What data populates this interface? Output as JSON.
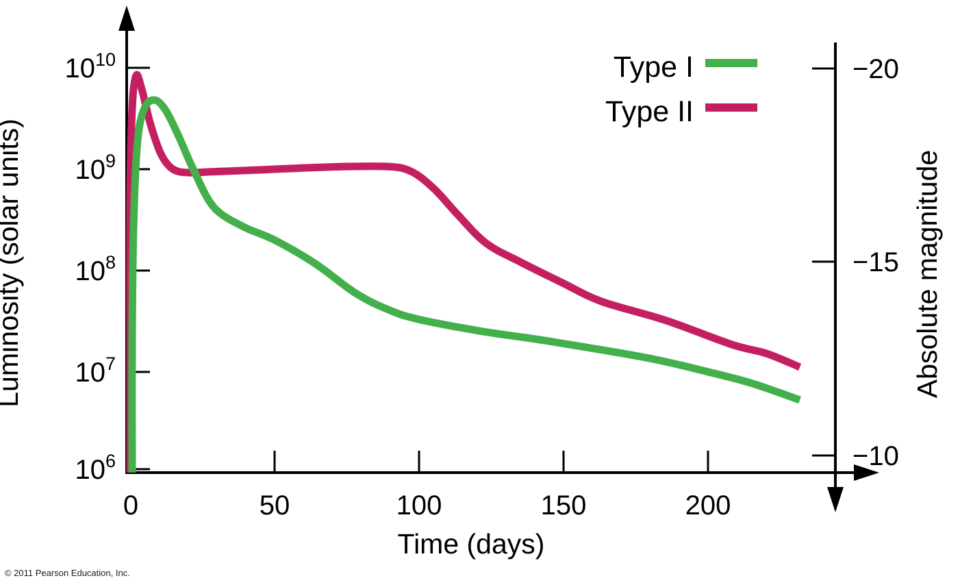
{
  "figure": {
    "copyright": "© 2011 Pearson Education, Inc."
  },
  "chart_data": {
    "type": "line",
    "title": "",
    "xlabel": "Time (days)",
    "ylabel_left": "Luminosity (solar units)",
    "ylabel_right": "Absolute magnitude",
    "x_ticks": [
      0,
      50,
      100,
      150,
      200
    ],
    "x_tick_labels": [
      "0",
      "50",
      "100",
      "150",
      "200"
    ],
    "x_range_days": [
      0,
      232
    ],
    "y_left_scale": "log",
    "y_left_range": [
      1000000.0,
      10000000000.0
    ],
    "y_left_ticks": [
      10000000000.0,
      1000000000.0,
      100000000.0,
      10000000.0,
      1000000.0
    ],
    "y_left_tick_labels": [
      {
        "base": "10",
        "exp": "10"
      },
      {
        "base": "10",
        "exp": "9"
      },
      {
        "base": "10",
        "exp": "8"
      },
      {
        "base": "10",
        "exp": "7"
      },
      {
        "base": "10",
        "exp": "6"
      }
    ],
    "y_right_ticks": [
      -20,
      -15,
      -10
    ],
    "y_right_tick_labels": [
      "−20",
      "−15",
      "−10"
    ],
    "grid": false,
    "legend_position": "top-right",
    "series": [
      {
        "name": "Type I",
        "color": "#43b04c",
        "points_day_luminosity": [
          [
            0.7,
            1000000.0
          ],
          [
            0.7,
            19000000.0
          ],
          [
            1.2,
            270000000.0
          ],
          [
            2.6,
            1900000000.0
          ],
          [
            5,
            4000000000.0
          ],
          [
            8.5,
            4800000000.0
          ],
          [
            12.3,
            3800000000.0
          ],
          [
            16.8,
            2100000000.0
          ],
          [
            21.8,
            1000000000.0
          ],
          [
            28.9,
            420000000.0
          ],
          [
            39,
            270000000.0
          ],
          [
            49.7,
            200000000.0
          ],
          [
            64,
            116000000.0
          ],
          [
            78,
            59000000.0
          ],
          [
            89,
            41000000.0
          ],
          [
            99,
            33000000.0
          ],
          [
            121,
            25000000.0
          ],
          [
            144,
            20000000.0
          ],
          [
            178,
            13700000.0
          ],
          [
            199,
            10000000.0
          ],
          [
            215,
            7600000.0
          ],
          [
            231.5,
            5200000.0
          ]
        ]
      },
      {
        "name": "Type II",
        "color": "#c42061",
        "points_day_luminosity": [
          [
            0,
            1000000.0
          ],
          [
            0,
            19000000.0
          ],
          [
            0,
            440000000.0
          ],
          [
            0.7,
            3900000000.0
          ],
          [
            2.1,
            8400000000.0
          ],
          [
            4,
            6200000000.0
          ],
          [
            7,
            2800000000.0
          ],
          [
            10.7,
            1400000000.0
          ],
          [
            14.7,
            1000000000.0
          ],
          [
            20,
            920000000.0
          ],
          [
            28.4,
            940000000.0
          ],
          [
            45,
            980000000.0
          ],
          [
            66,
            1040000000.0
          ],
          [
            88,
            1060000000.0
          ],
          [
            97,
            950000000.0
          ],
          [
            105,
            640000000.0
          ],
          [
            113,
            360000000.0
          ],
          [
            123,
            185000000.0
          ],
          [
            135,
            120000000.0
          ],
          [
            149,
            76000000.0
          ],
          [
            163,
            49000000.0
          ],
          [
            185,
            32000000.0
          ],
          [
            208,
            18400000.0
          ],
          [
            220,
            15000000.0
          ],
          [
            231.5,
            11000000.0
          ]
        ]
      }
    ]
  }
}
